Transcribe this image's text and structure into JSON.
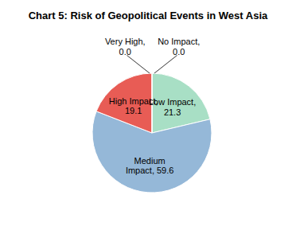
{
  "chart_data": {
    "type": "pie",
    "title": "Chart 5: Risk of Geopolitical Events in West Asia",
    "categories": [
      "No Impact,\n0.0",
      "Low Impact,\n21.3",
      "Medium\nImpact, 59.6",
      "High Impact,\n19.1",
      "Very High,\n0.0"
    ],
    "values": [
      0.001,
      21.3,
      59.6,
      19.1,
      0.001
    ],
    "colors": [
      "#A8DFC5",
      "#A8DFC5",
      "#95B8D8",
      "#E85C55",
      "#A8DFC5"
    ]
  }
}
